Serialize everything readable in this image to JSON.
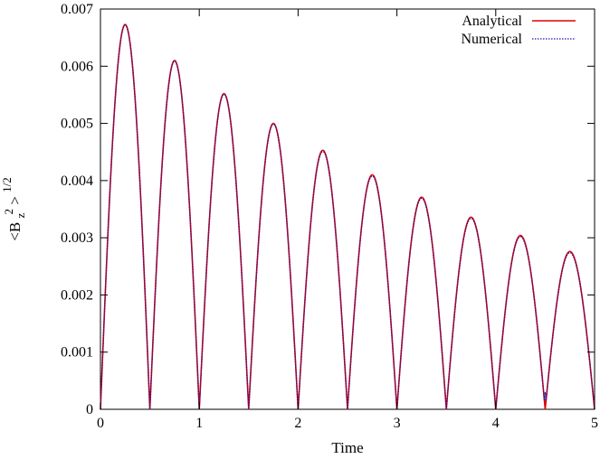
{
  "chart_data": {
    "type": "line",
    "title": "",
    "xlabel": "Time",
    "ylabel": {
      "base": "<B",
      "sub": "z",
      "sup": "2",
      "close": ">",
      "exp": "1/2"
    },
    "xlim": [
      0,
      5
    ],
    "ylim": [
      0,
      0.007
    ],
    "x_ticks": [
      "0",
      "1",
      "2",
      "3",
      "4",
      "5"
    ],
    "y_ticks": [
      "0",
      "0.001",
      "0.002",
      "0.003",
      "0.004",
      "0.005",
      "0.006",
      "0.007"
    ],
    "grid": false,
    "legend_position": "top-right",
    "series": [
      {
        "name": "Analytical",
        "color": "#e00000",
        "style": "solid",
        "peaks": [
          {
            "t": 0.25,
            "value": 0.00673
          },
          {
            "t": 0.75,
            "value": 0.0061
          },
          {
            "t": 1.25,
            "value": 0.00552
          },
          {
            "t": 1.75,
            "value": 0.005
          },
          {
            "t": 2.25,
            "value": 0.00453
          },
          {
            "t": 2.75,
            "value": 0.0041
          },
          {
            "t": 3.25,
            "value": 0.00371
          },
          {
            "t": 3.75,
            "value": 0.00336
          },
          {
            "t": 4.25,
            "value": 0.00304
          },
          {
            "t": 4.75,
            "value": 0.00276
          }
        ],
        "zeros": [
          0,
          0.5,
          1,
          1.5,
          2,
          2.5,
          3,
          3.5,
          4,
          4.5,
          5
        ]
      },
      {
        "name": "Numerical",
        "color": "#1a1aa8",
        "style": "dotted",
        "peaks": [
          {
            "t": 0.25,
            "value": 0.00672
          },
          {
            "t": 0.75,
            "value": 0.00609
          },
          {
            "t": 1.25,
            "value": 0.00551
          },
          {
            "t": 1.75,
            "value": 0.00499
          },
          {
            "t": 2.25,
            "value": 0.00451
          },
          {
            "t": 2.75,
            "value": 0.00408
          },
          {
            "t": 3.25,
            "value": 0.00369
          },
          {
            "t": 3.75,
            "value": 0.00334
          },
          {
            "t": 4.25,
            "value": 0.00302
          },
          {
            "t": 4.75,
            "value": 0.00274
          }
        ],
        "zeros": [
          0,
          0.5,
          1,
          1.5,
          2,
          2.5,
          3,
          3.5,
          4,
          4.5,
          5
        ],
        "zero_minimum": 0.0003
      }
    ]
  }
}
